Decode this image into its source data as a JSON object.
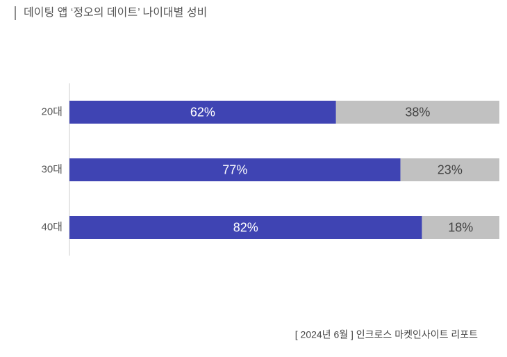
{
  "chart_data": {
    "type": "stacked-bar-horizontal",
    "title": "데이팅 앱 ‘정오의 데이트’ 나이대별 성비",
    "source": "[ 2024년 6월 ] 인크로스 마켓인사이트 리포트",
    "categories": [
      "20대",
      "30대",
      "40대"
    ],
    "xlim": [
      0,
      100
    ],
    "series": [
      {
        "color": "#3f44b3",
        "values": [
          62,
          77,
          82
        ],
        "value_labels": [
          "62%",
          "77%",
          "82%"
        ]
      },
      {
        "color": "#c1c1c1",
        "values": [
          38,
          23,
          18
        ],
        "value_labels": [
          "38%",
          "23%",
          "18%"
        ]
      }
    ]
  }
}
